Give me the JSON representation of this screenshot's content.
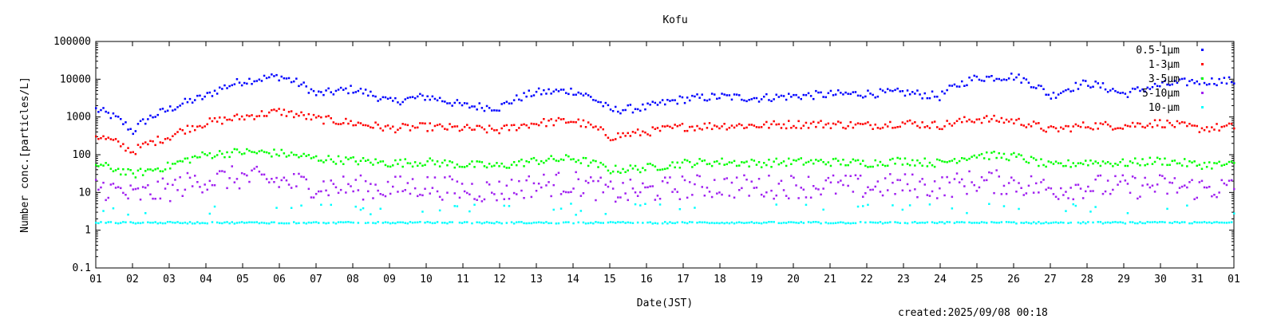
{
  "chart_data": {
    "type": "scatter",
    "title": "Kofu",
    "xlabel": "Date(JST)",
    "ylabel": "Number conc.[particles/L]",
    "y_scale": "log",
    "ylim": [
      0.1,
      100000
    ],
    "y_ticks": [
      "0.1",
      "1",
      "10",
      "100",
      "1000",
      "10000",
      "100000"
    ],
    "x_range_days": [
      0,
      31
    ],
    "x_tick_labels": [
      "01",
      "02",
      "03",
      "04",
      "05",
      "06",
      "07",
      "08",
      "09",
      "10",
      "11",
      "12",
      "13",
      "14",
      "15",
      "16",
      "17",
      "18",
      "19",
      "20",
      "21",
      "22",
      "23",
      "24",
      "25",
      "26",
      "27",
      "28",
      "29",
      "30",
      "31",
      "01"
    ],
    "legend_position": "top-right",
    "grid": false,
    "series": [
      {
        "name": "0.5-1μm",
        "color": "#0000ff",
        "daily_typical": [
          1600,
          400,
          1600,
          3500,
          9000,
          12000,
          4000,
          5500,
          2500,
          3500,
          2000,
          1800,
          4500,
          5000,
          1500,
          1800,
          3000,
          3500,
          3200,
          3600,
          4000,
          4200,
          4500,
          3500,
          11000,
          12000,
          3500,
          8000,
          4000,
          7000,
          9000,
          9000
        ]
      },
      {
        "name": "1-3μm",
        "color": "#ff0000",
        "daily_typical": [
          320,
          120,
          300,
          700,
          1000,
          1400,
          900,
          700,
          500,
          550,
          500,
          450,
          700,
          800,
          300,
          400,
          550,
          600,
          600,
          650,
          650,
          600,
          700,
          600,
          900,
          800,
          450,
          600,
          600,
          700,
          500,
          550
        ]
      },
      {
        "name": "3-5μm",
        "color": "#00ff00",
        "daily_typical": [
          55,
          30,
          50,
          100,
          120,
          110,
          80,
          70,
          60,
          65,
          55,
          50,
          70,
          80,
          40,
          45,
          60,
          65,
          60,
          65,
          65,
          60,
          70,
          60,
          100,
          90,
          50,
          65,
          60,
          70,
          55,
          55
        ]
      },
      {
        "name": "5-10μm",
        "color": "#a020f0",
        "daily_typical": [
          15,
          8,
          12,
          22,
          25,
          20,
          15,
          14,
          13,
          15,
          12,
          11,
          16,
          18,
          10,
          11,
          14,
          15,
          14,
          15,
          15,
          14,
          16,
          14,
          20,
          18,
          12,
          15,
          14,
          15,
          13,
          13
        ]
      },
      {
        "name": "10-μm",
        "color": "#00ffff",
        "daily_typical": [
          1.6,
          1.6,
          1.6,
          1.6,
          1.6,
          1.6,
          1.6,
          1.6,
          1.6,
          1.6,
          1.6,
          1.6,
          1.6,
          1.6,
          1.6,
          1.6,
          1.6,
          1.6,
          1.6,
          1.6,
          1.6,
          1.6,
          1.6,
          1.6,
          1.6,
          1.6,
          1.6,
          1.6,
          1.6,
          1.6,
          1.6,
          1.6
        ]
      }
    ]
  },
  "footer": {
    "created": "created:2025/09/08 00:18"
  }
}
